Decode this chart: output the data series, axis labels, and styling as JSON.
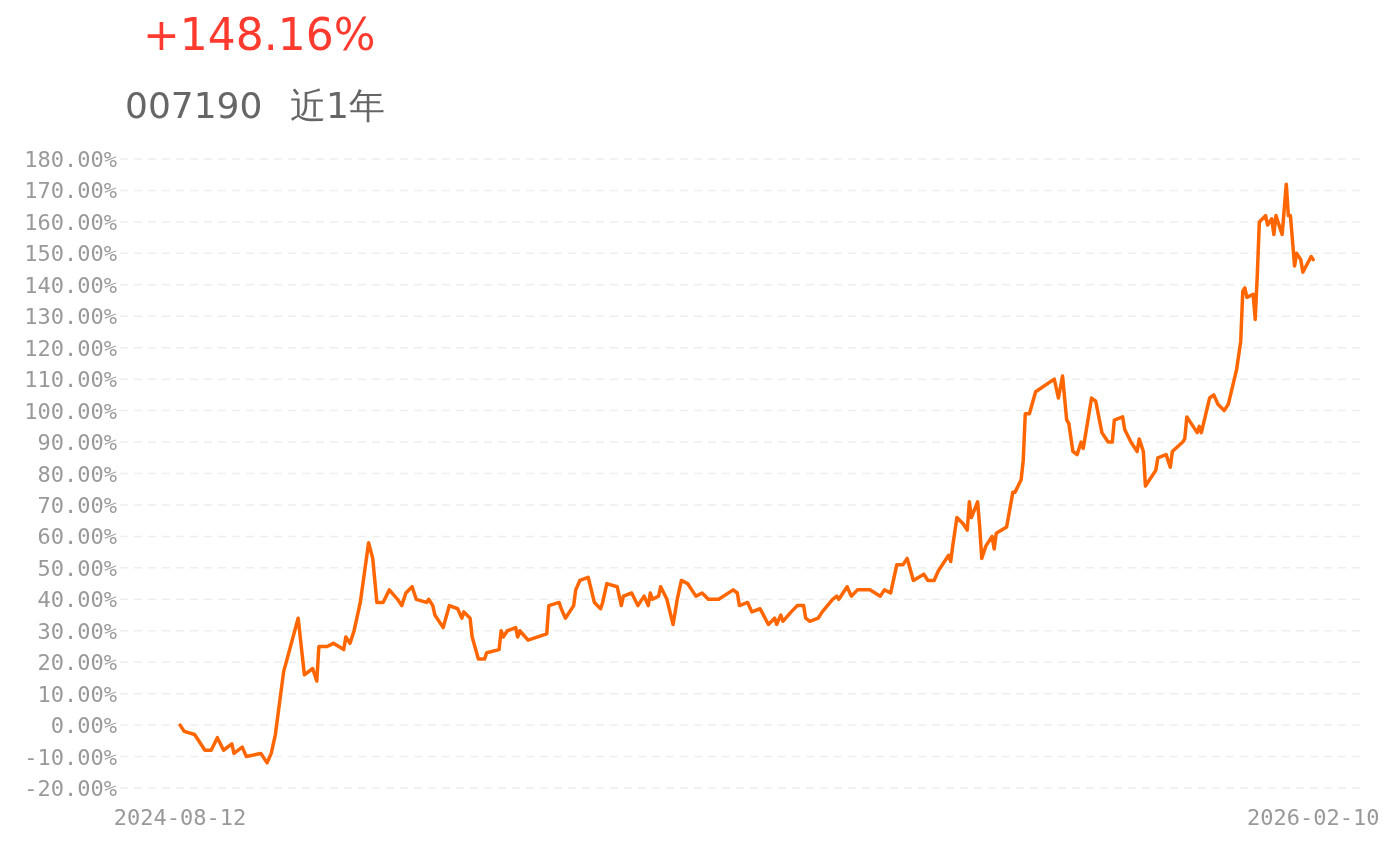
{
  "chart_data": {
    "type": "line",
    "title": "+148.16%",
    "subtitle": "007190",
    "annotations": [
      "近1年"
    ],
    "xlim": [
      "2024-07-14",
      "2026-03-07"
    ],
    "xticks": [
      "2024-08-12",
      "2026-02-10"
    ],
    "ylim": [
      -20,
      180
    ],
    "yticks": [
      {
        "value": -20,
        "label": "-20.00%"
      },
      {
        "value": -10,
        "label": "-10.00%"
      },
      {
        "value": 0,
        "label": "0.00%"
      },
      {
        "value": 10,
        "label": "10.00%"
      },
      {
        "value": 20,
        "label": "20.00%"
      },
      {
        "value": 30,
        "label": "30.00%"
      },
      {
        "value": 40,
        "label": "40.00%"
      },
      {
        "value": 50,
        "label": "50.00%"
      },
      {
        "value": 60,
        "label": "60.00%"
      },
      {
        "value": 70,
        "label": "70.00%"
      },
      {
        "value": 80,
        "label": "80.00%"
      },
      {
        "value": 90,
        "label": "90.00%"
      },
      {
        "value": 100,
        "label": "100.00%"
      },
      {
        "value": 110,
        "label": "110.00%"
      },
      {
        "value": 120,
        "label": "120.00%"
      },
      {
        "value": 130,
        "label": "130.00%"
      },
      {
        "value": 140,
        "label": "140.00%"
      },
      {
        "value": 150,
        "label": "150.00%"
      },
      {
        "value": 160,
        "label": "160.00%"
      },
      {
        "value": 170,
        "label": "170.00%"
      },
      {
        "value": 180,
        "label": "180.00%"
      }
    ],
    "grid": "y",
    "marker": "none",
    "line_style": "solid",
    "series": [
      {
        "color": "#ff6600",
        "x": [
          "2024-08-12",
          "2024-08-14",
          "2024-08-19",
          "2024-08-21",
          "2024-08-24",
          "2024-08-27",
          "2024-08-30",
          "2024-09-02",
          "2024-09-06",
          "2024-09-07",
          "2024-09-11",
          "2024-09-13",
          "2024-09-20",
          "2024-09-23",
          "2024-09-25",
          "2024-09-27",
          "2024-10-01",
          "2024-10-08",
          "2024-10-11",
          "2024-10-15",
          "2024-10-17",
          "2024-10-18",
          "2024-10-22",
          "2024-10-25",
          "2024-10-30",
          "2024-10-31",
          "2024-11-02",
          "2024-11-04",
          "2024-11-07",
          "2024-11-11",
          "2024-11-13",
          "2024-11-15",
          "2024-11-18",
          "2024-11-21",
          "2024-11-25",
          "2024-11-27",
          "2024-11-29",
          "2024-12-02",
          "2024-12-04",
          "2024-12-09",
          "2024-12-10",
          "2024-12-12",
          "2024-12-13",
          "2024-12-17",
          "2024-12-20",
          "2024-12-24",
          "2024-12-26",
          "2024-12-27",
          "2024-12-30",
          "2024-12-31",
          "2025-01-03",
          "2025-01-06",
          "2025-01-07",
          "2025-01-13",
          "2025-01-14",
          "2025-01-15",
          "2025-01-17",
          "2025-01-21",
          "2025-01-22",
          "2025-01-23",
          "2025-01-27",
          "2025-02-05",
          "2025-02-06",
          "2025-02-11",
          "2025-02-12",
          "2025-02-14",
          "2025-02-18",
          "2025-02-19",
          "2025-02-21",
          "2025-02-25",
          "2025-02-28",
          "2025-03-03",
          "2025-03-04",
          "2025-03-06",
          "2025-03-11",
          "2025-03-13",
          "2025-03-14",
          "2025-03-18",
          "2025-03-21",
          "2025-03-24",
          "2025-03-26",
          "2025-03-27",
          "2025-03-28",
          "2025-03-31",
          "2025-04-01",
          "2025-04-04",
          "2025-04-07",
          "2025-04-09",
          "2025-04-11",
          "2025-04-14",
          "2025-04-16",
          "2025-04-18",
          "2025-04-21",
          "2025-04-24",
          "2025-04-29",
          "2025-05-06",
          "2025-05-08",
          "2025-05-09",
          "2025-05-13",
          "2025-05-15",
          "2025-05-19",
          "2025-05-23",
          "2025-05-26",
          "2025-05-27",
          "2025-05-29",
          "2025-05-30",
          "2025-06-03",
          "2025-06-06",
          "2025-06-09",
          "2025-06-10",
          "2025-06-12",
          "2025-06-16",
          "2025-06-18",
          "2025-06-23",
          "2025-06-25",
          "2025-06-26",
          "2025-06-30",
          "2025-07-02",
          "2025-07-05",
          "2025-07-07",
          "2025-07-11",
          "2025-07-16",
          "2025-07-18",
          "2025-07-21",
          "2025-07-24",
          "2025-07-27",
          "2025-07-29",
          "2025-08-01",
          "2025-08-06",
          "2025-08-08",
          "2025-08-11",
          "2025-08-13",
          "2025-08-16",
          "2025-08-18",
          "2025-08-19",
          "2025-08-20",
          "2025-08-22",
          "2025-08-25",
          "2025-08-27",
          "2025-08-28",
          "2025-08-29",
          "2025-09-01",
          "2025-09-02",
          "2025-09-03",
          "2025-09-05",
          "2025-09-08",
          "2025-09-09",
          "2025-09-10",
          "2025-09-15",
          "2025-09-18",
          "2025-09-19",
          "2025-09-22",
          "2025-09-23",
          "2025-09-24",
          "2025-09-26",
          "2025-09-29",
          "2025-10-08",
          "2025-10-10",
          "2025-10-12",
          "2025-10-14",
          "2025-10-15",
          "2025-10-17",
          "2025-10-19",
          "2025-10-21",
          "2025-10-22",
          "2025-10-24",
          "2025-10-26",
          "2025-10-28",
          "2025-10-31",
          "2025-11-03",
          "2025-11-05",
          "2025-11-06",
          "2025-11-10",
          "2025-11-11",
          "2025-11-14",
          "2025-11-17",
          "2025-11-18",
          "2025-11-20",
          "2025-11-21",
          "2025-11-25",
          "2025-11-26",
          "2025-11-27",
          "2025-12-01",
          "2025-12-03",
          "2025-12-04",
          "2025-12-09",
          "2025-12-10",
          "2025-12-11",
          "2025-12-16",
          "2025-12-17",
          "2025-12-18",
          "2025-12-22",
          "2025-12-24",
          "2025-12-26",
          "2025-12-29",
          "2025-12-31",
          "2026-01-04",
          "2026-01-06",
          "2026-01-07",
          "2026-01-08",
          "2026-01-09",
          "2026-01-12",
          "2026-01-13",
          "2026-01-14",
          "2026-01-15",
          "2026-01-18",
          "2026-01-19",
          "2026-01-21",
          "2026-01-22",
          "2026-01-23",
          "2026-01-26",
          "2026-01-28",
          "2026-01-29",
          "2026-01-30",
          "2026-02-01",
          "2026-02-02",
          "2026-02-04",
          "2026-02-05",
          "2026-02-09",
          "2026-02-10"
        ],
        "values": [
          0,
          -2,
          -3,
          -5,
          -8,
          -8,
          -4,
          -8,
          -6,
          -9,
          -7,
          -10,
          -9,
          -12,
          -9,
          -3,
          17,
          34,
          16,
          18,
          14,
          25,
          25,
          26,
          24,
          28,
          26,
          30,
          39,
          58,
          53,
          39,
          39,
          43,
          40,
          38,
          42,
          44,
          40,
          39,
          40,
          38,
          35,
          31,
          38,
          37,
          34,
          36,
          34,
          28,
          21,
          21,
          23,
          24,
          30,
          28,
          30,
          31,
          28,
          30,
          27,
          29,
          38,
          39,
          37,
          34,
          38,
          43,
          46,
          47,
          39,
          37,
          39,
          45,
          44,
          38,
          41,
          42,
          38,
          41,
          38,
          42,
          40,
          41,
          44,
          40,
          32,
          40,
          46,
          45,
          43,
          41,
          42,
          40,
          40,
          43,
          42,
          38,
          39,
          36,
          37,
          32,
          34,
          32,
          35,
          33,
          36,
          38,
          38,
          34,
          33,
          34,
          36,
          40,
          41,
          40,
          44,
          41,
          43,
          43,
          43,
          41,
          43,
          42,
          51,
          51,
          53,
          46,
          48,
          46,
          46,
          49,
          52,
          54,
          52,
          57,
          66,
          64,
          62,
          71,
          66,
          71,
          63,
          53,
          57,
          60,
          56,
          61,
          63,
          74,
          74,
          78,
          84,
          99,
          99,
          106,
          110,
          104,
          111,
          97,
          96,
          87,
          86,
          90,
          88,
          96,
          104,
          103,
          93,
          90,
          90,
          97,
          98,
          94,
          90,
          87,
          91,
          87,
          76,
          80,
          81,
          85,
          86,
          82,
          87,
          90,
          91,
          98,
          93,
          95,
          93,
          104,
          105,
          102,
          100,
          102,
          113,
          122,
          138,
          139,
          136,
          137,
          129,
          143,
          160,
          162,
          159,
          161,
          156,
          162,
          156,
          172,
          162,
          162,
          146,
          150,
          148,
          144,
          149,
          148
        ]
      }
    ]
  }
}
